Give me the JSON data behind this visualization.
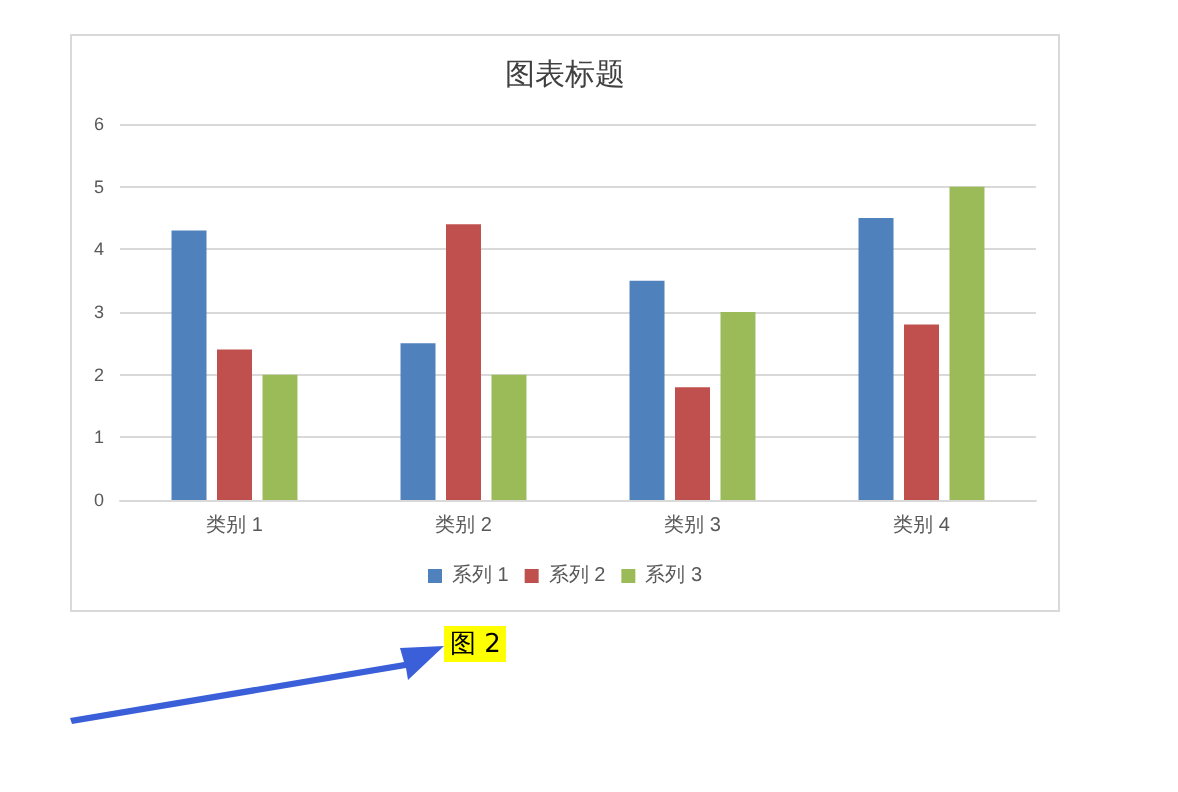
{
  "chart_data": {
    "type": "bar",
    "title": "图表标题",
    "categories": [
      "类别 1",
      "类别 2",
      "类别 3",
      "类别 4"
    ],
    "series": [
      {
        "name": "系列 1",
        "color": "#4f81bd",
        "values": [
          4.3,
          2.5,
          3.5,
          4.5
        ]
      },
      {
        "name": "系列 2",
        "color": "#c0504d",
        "values": [
          2.4,
          4.4,
          1.8,
          2.8
        ]
      },
      {
        "name": "系列 3",
        "color": "#9bbb59",
        "values": [
          2,
          2,
          3,
          5
        ]
      }
    ],
    "ylim": [
      0,
      6
    ],
    "yticks": [
      0,
      1,
      2,
      3,
      4,
      5,
      6
    ],
    "grid": "y",
    "legend": "bottom",
    "annotations": [
      "图 2"
    ]
  }
}
